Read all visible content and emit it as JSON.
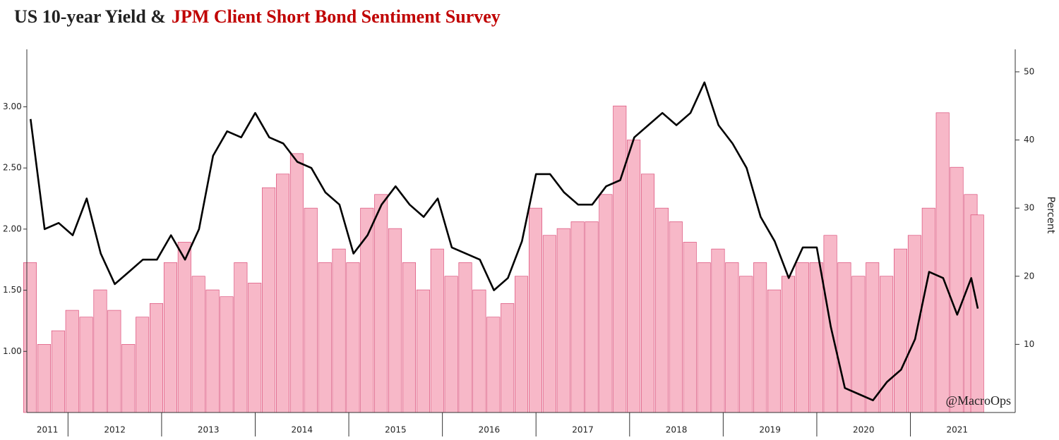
{
  "chart_data": {
    "type": "combo",
    "title": [
      "US 10-year Yield &",
      "JPM Client Short Bond Sentiment Survey"
    ],
    "title_colors": [
      "#222222",
      "#c00000"
    ],
    "y2_label": "Percent",
    "annotation": "@MacroOps",
    "x": [
      2011.6,
      2011.75,
      2011.9,
      2012.05,
      2012.2,
      2012.35,
      2012.5,
      2012.65,
      2012.8,
      2012.95,
      2013.1,
      2013.25,
      2013.4,
      2013.55,
      2013.7,
      2013.85,
      2014.0,
      2014.15,
      2014.3,
      2014.45,
      2014.6,
      2014.75,
      2014.9,
      2015.05,
      2015.2,
      2015.35,
      2015.5,
      2015.65,
      2015.8,
      2015.95,
      2016.1,
      2016.25,
      2016.4,
      2016.55,
      2016.7,
      2016.85,
      2017.0,
      2017.15,
      2017.3,
      2017.45,
      2017.6,
      2017.75,
      2017.9,
      2018.05,
      2018.2,
      2018.35,
      2018.5,
      2018.65,
      2018.8,
      2018.95,
      2019.1,
      2019.25,
      2019.4,
      2019.55,
      2019.7,
      2019.85,
      2020.0,
      2020.15,
      2020.3,
      2020.45,
      2020.6,
      2020.75,
      2020.9,
      2021.05,
      2021.2,
      2021.35,
      2021.5,
      2021.65,
      2021.72
    ],
    "series": [
      {
        "type": "bar",
        "axis": "y2",
        "color": "#f7b8c8",
        "edge": "#d63a6a",
        "values": [
          22,
          10,
          12,
          15,
          14,
          18,
          15,
          10,
          14,
          16,
          22,
          25,
          20,
          18,
          17,
          22,
          19,
          33,
          35,
          38,
          30,
          22,
          24,
          22,
          30,
          32,
          27,
          22,
          18,
          24,
          20,
          22,
          18,
          14,
          16,
          20,
          30,
          26,
          27,
          28,
          28,
          32,
          45,
          40,
          35,
          30,
          28,
          25,
          22,
          24,
          22,
          20,
          22,
          18,
          20,
          22,
          22,
          26,
          22,
          20,
          22,
          20,
          24,
          26,
          30,
          44,
          36,
          32,
          29
        ]
      },
      {
        "type": "line",
        "color": "#000000",
        "values": [
          2.9,
          2.0,
          2.05,
          1.95,
          2.25,
          1.8,
          1.55,
          1.65,
          1.75,
          1.75,
          1.95,
          1.75,
          2.0,
          2.6,
          2.8,
          2.75,
          2.95,
          2.75,
          2.7,
          2.55,
          2.5,
          2.3,
          2.2,
          1.8,
          1.95,
          2.2,
          2.35,
          2.2,
          2.1,
          2.25,
          1.85,
          1.8,
          1.75,
          1.5,
          1.6,
          1.9,
          2.45,
          2.45,
          2.3,
          2.2,
          2.2,
          2.35,
          2.4,
          2.75,
          2.85,
          2.95,
          2.85,
          2.95,
          3.2,
          2.85,
          2.7,
          2.5,
          2.1,
          1.9,
          1.6,
          1.85,
          1.85,
          1.2,
          0.7,
          0.65,
          0.6,
          0.75,
          0.85,
          1.1,
          1.65,
          1.6,
          1.3,
          1.6,
          1.35
        ]
      }
    ],
    "xlim": [
      2011.56,
      2022.12
    ],
    "xticks": [
      2011,
      2012,
      2013,
      2014,
      2015,
      2016,
      2017,
      2018,
      2019,
      2020,
      2021
    ],
    "ylim": [
      0.5,
      3.47
    ],
    "yticks": [
      {
        "value": 1,
        "label": "1.00"
      },
      {
        "value": 1.5,
        "label": "1.50"
      },
      {
        "value": 2,
        "label": "2.00"
      },
      {
        "value": 2.5,
        "label": "2.50"
      },
      {
        "value": 3,
        "label": "3.00"
      }
    ],
    "y2lim": [
      0,
      53.3
    ],
    "y2ticks": [
      10,
      20,
      30,
      40,
      50
    ]
  }
}
